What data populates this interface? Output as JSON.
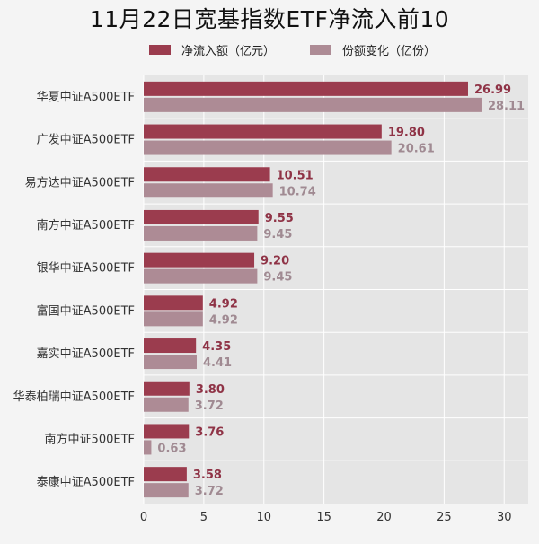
{
  "chart_data": {
    "type": "bar",
    "orientation": "horizontal",
    "title": "11月22日宽基指数ETF净流入前10",
    "categories": [
      "华夏中证A500ETF",
      "广发中证A500ETF",
      "易方达中证A500ETF",
      "南方中证A500ETF",
      "银华中证A500ETF",
      "富国中证A500ETF",
      "嘉实中证A500ETF",
      "华泰柏瑞中证A500ETF",
      "南方中证500ETF",
      "泰康中证A500ETF"
    ],
    "series": [
      {
        "name": "净流入额（亿元）",
        "color": "#9b3c4e",
        "label_color": "#8f3346",
        "values": [
          26.99,
          19.8,
          10.51,
          9.55,
          9.2,
          4.92,
          4.35,
          3.8,
          3.76,
          3.58
        ]
      },
      {
        "name": "份额变化（亿份）",
        "color": "#ad8b95",
        "label_color": "#a08a92",
        "values": [
          28.11,
          20.61,
          10.74,
          9.45,
          9.45,
          4.92,
          4.41,
          3.72,
          0.63,
          3.72
        ]
      }
    ],
    "value_labels": [
      [
        "26.99",
        "19.80",
        "10.51",
        "9.55",
        "9.20",
        "4.92",
        "4.35",
        "3.80",
        "3.76",
        "3.58"
      ],
      [
        "28.11",
        "20.61",
        "10.74",
        "9.45",
        "9.45",
        "4.92",
        "4.41",
        "3.72",
        "0.63",
        "3.72"
      ]
    ],
    "xlim": [
      0,
      32
    ],
    "xticks": [
      0,
      5,
      10,
      15,
      20,
      25,
      30
    ],
    "xtick_labels": [
      "0",
      "5",
      "10",
      "15",
      "20",
      "25",
      "30"
    ],
    "grid": true,
    "legend_position": "top",
    "plot_background": "#e5e5e5",
    "grid_color": "#ffffff"
  }
}
